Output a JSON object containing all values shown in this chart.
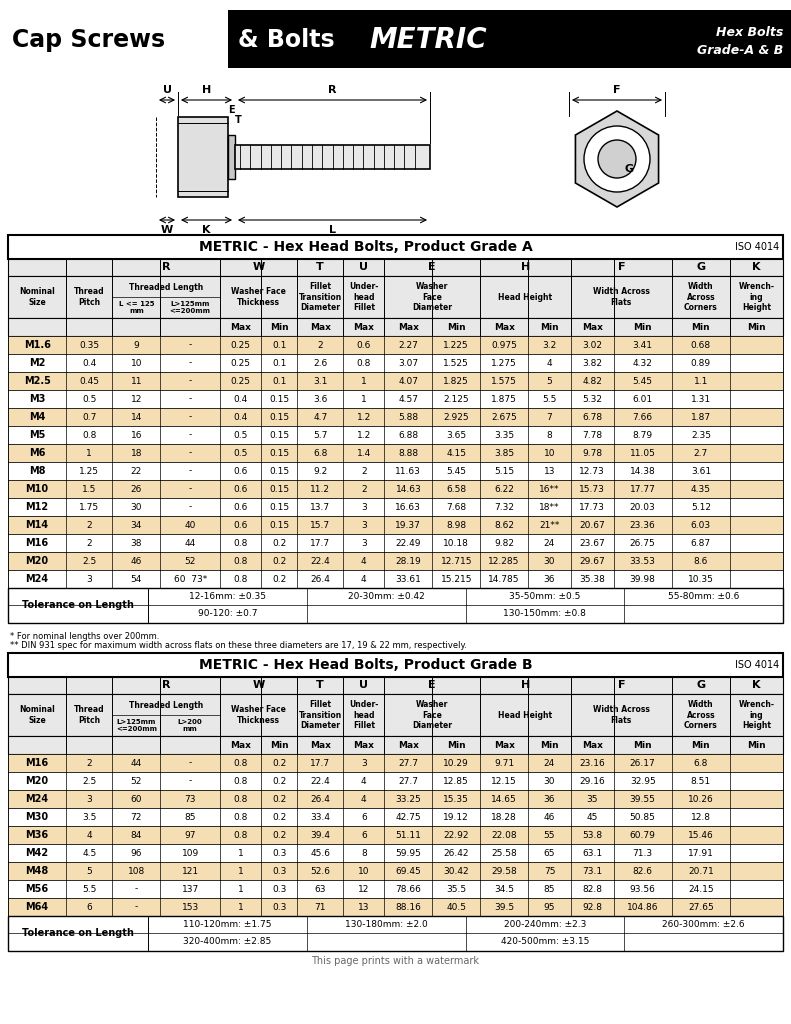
{
  "grade_a_title": "METRIC - Hex Head Bolts, Product Grade A",
  "grade_a_iso": "ISO 4014",
  "grade_b_title": "METRIC - Hex Head Bolts, Product Grade B",
  "grade_b_iso": "ISO 4014",
  "grade_a_rows": [
    [
      "M1.6",
      "0.35",
      "9",
      "-",
      "0.25",
      "0.1",
      "2",
      "0.6",
      "2.27",
      "1.225",
      "0.975",
      "3.2",
      "3.02",
      "3.41",
      "0.68"
    ],
    [
      "M2",
      "0.4",
      "10",
      "-",
      "0.25",
      "0.1",
      "2.6",
      "0.8",
      "3.07",
      "1.525",
      "1.275",
      "4",
      "3.82",
      "4.32",
      "0.89"
    ],
    [
      "M2.5",
      "0.45",
      "11",
      "-",
      "0.25",
      "0.1",
      "3.1",
      "1",
      "4.07",
      "1.825",
      "1.575",
      "5",
      "4.82",
      "5.45",
      "1.1"
    ],
    [
      "M3",
      "0.5",
      "12",
      "-",
      "0.4",
      "0.15",
      "3.6",
      "1",
      "4.57",
      "2.125",
      "1.875",
      "5.5",
      "5.32",
      "6.01",
      "1.31"
    ],
    [
      "M4",
      "0.7",
      "14",
      "-",
      "0.4",
      "0.15",
      "4.7",
      "1.2",
      "5.88",
      "2.925",
      "2.675",
      "7",
      "6.78",
      "7.66",
      "1.87"
    ],
    [
      "M5",
      "0.8",
      "16",
      "-",
      "0.5",
      "0.15",
      "5.7",
      "1.2",
      "6.88",
      "3.65",
      "3.35",
      "8",
      "7.78",
      "8.79",
      "2.35"
    ],
    [
      "M6",
      "1",
      "18",
      "-",
      "0.5",
      "0.15",
      "6.8",
      "1.4",
      "8.88",
      "4.15",
      "3.85",
      "10",
      "9.78",
      "11.05",
      "2.7"
    ],
    [
      "M8",
      "1.25",
      "22",
      "-",
      "0.6",
      "0.15",
      "9.2",
      "2",
      "11.63",
      "5.45",
      "5.15",
      "13",
      "12.73",
      "14.38",
      "3.61"
    ],
    [
      "M10",
      "1.5",
      "26",
      "-",
      "0.6",
      "0.15",
      "11.2",
      "2",
      "14.63",
      "6.58",
      "6.22",
      "16**",
      "15.73",
      "17.77",
      "4.35"
    ],
    [
      "M12",
      "1.75",
      "30",
      "-",
      "0.6",
      "0.15",
      "13.7",
      "3",
      "16.63",
      "7.68",
      "7.32",
      "18**",
      "17.73",
      "20.03",
      "5.12"
    ],
    [
      "M14",
      "2",
      "34",
      "40",
      "0.6",
      "0.15",
      "15.7",
      "3",
      "19.37",
      "8.98",
      "8.62",
      "21**",
      "20.67",
      "23.36",
      "6.03"
    ],
    [
      "M16",
      "2",
      "38",
      "44",
      "0.8",
      "0.2",
      "17.7",
      "3",
      "22.49",
      "10.18",
      "9.82",
      "24",
      "23.67",
      "26.75",
      "6.87"
    ],
    [
      "M20",
      "2.5",
      "46",
      "52",
      "0.8",
      "0.2",
      "22.4",
      "4",
      "28.19",
      "12.715",
      "12.285",
      "30",
      "29.67",
      "33.53",
      "8.6"
    ],
    [
      "M24",
      "3",
      "54",
      "60  73*",
      "0.8",
      "0.2",
      "26.4",
      "4",
      "33.61",
      "15.215",
      "14.785",
      "36",
      "35.38",
      "39.98",
      "10.35"
    ]
  ],
  "grade_a_tolerance": [
    [
      "12-16mm: ±0.35",
      "20-30mm: ±0.42",
      "35-50mm: ±0.5",
      "55-80mm: ±0.6"
    ],
    [
      "90-120: ±0.7",
      "",
      "130-150mm: ±0.8",
      ""
    ]
  ],
  "grade_b_rows": [
    [
      "M16",
      "2",
      "44",
      "-",
      "0.8",
      "0.2",
      "17.7",
      "3",
      "27.7",
      "10.29",
      "9.71",
      "24",
      "23.16",
      "26.17",
      "6.8"
    ],
    [
      "M20",
      "2.5",
      "52",
      "-",
      "0.8",
      "0.2",
      "22.4",
      "4",
      "27.7",
      "12.85",
      "12.15",
      "30",
      "29.16",
      "32.95",
      "8.51"
    ],
    [
      "M24",
      "3",
      "60",
      "73",
      "0.8",
      "0.2",
      "26.4",
      "4",
      "33.25",
      "15.35",
      "14.65",
      "36",
      "35",
      "39.55",
      "10.26"
    ],
    [
      "M30",
      "3.5",
      "72",
      "85",
      "0.8",
      "0.2",
      "33.4",
      "6",
      "42.75",
      "19.12",
      "18.28",
      "46",
      "45",
      "50.85",
      "12.8"
    ],
    [
      "M36",
      "4",
      "84",
      "97",
      "0.8",
      "0.2",
      "39.4",
      "6",
      "51.11",
      "22.92",
      "22.08",
      "55",
      "53.8",
      "60.79",
      "15.46"
    ],
    [
      "M42",
      "4.5",
      "96",
      "109",
      "1",
      "0.3",
      "45.6",
      "8",
      "59.95",
      "26.42",
      "25.58",
      "65",
      "63.1",
      "71.3",
      "17.91"
    ],
    [
      "M48",
      "5",
      "108",
      "121",
      "1",
      "0.3",
      "52.6",
      "10",
      "69.45",
      "30.42",
      "29.58",
      "75",
      "73.1",
      "82.6",
      "20.71"
    ],
    [
      "M56",
      "5.5",
      "-",
      "137",
      "1",
      "0.3",
      "63",
      "12",
      "78.66",
      "35.5",
      "34.5",
      "85",
      "82.8",
      "93.56",
      "24.15"
    ],
    [
      "M64",
      "6",
      "-",
      "153",
      "1",
      "0.3",
      "71",
      "13",
      "88.16",
      "40.5",
      "39.5",
      "95",
      "92.8",
      "104.86",
      "27.65"
    ]
  ],
  "grade_b_tolerance": [
    [
      "110-120mm: ±1.75",
      "130-180mm: ±2.0",
      "200-240mm: ±2.3",
      "260-300mm: ±2.6"
    ],
    [
      "320-400mm: ±2.85",
      "",
      "420-500mm: ±3.15",
      ""
    ]
  ],
  "footnote1": "* For nominal lengths over 200mm.",
  "footnote2": "** DIN 931 spec for maximum width across flats on these three diameters are 17, 19 & 22 mm, respectively.",
  "watermark": "This page prints with a watermark",
  "row_bg_odd": "#f5deb3",
  "row_bg_even": "#ffffff",
  "table_header_bg": "#e8e8e8"
}
